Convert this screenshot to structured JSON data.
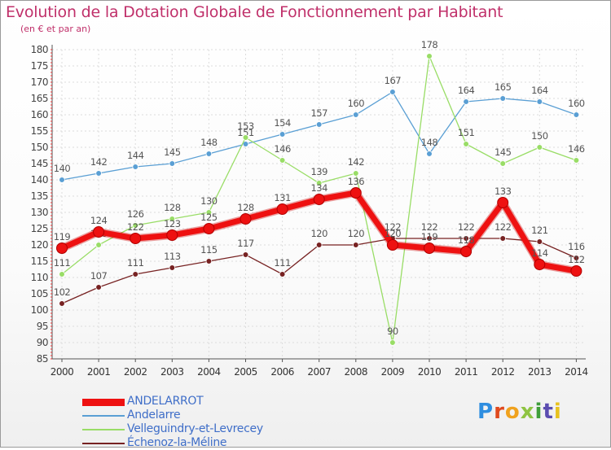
{
  "page": {
    "title": "Evolution de la Dotation Globale de Fonctionnement par Habitant",
    "subtitle": "(en € et par an)"
  },
  "logo": {
    "text": "Proxiti",
    "colors": [
      "#2f8ee0",
      "#e04a1e",
      "#f0a21e",
      "#8fc442",
      "#3f9e3a",
      "#5b4db0",
      "#e8c21e"
    ]
  },
  "chart_data": {
    "type": "line",
    "title": "Evolution de la Dotation Globale de Fonctionnement par Habitant",
    "subtitle": "(en € et par an)",
    "xlabel": "",
    "ylabel": "",
    "x": [
      "2000",
      "2001",
      "2002",
      "2003",
      "2004",
      "2005",
      "2006",
      "2007",
      "2008",
      "2009",
      "2010",
      "2011",
      "2012",
      "2013",
      "2014"
    ],
    "ylim": [
      85,
      180
    ],
    "yticks": [
      85,
      90,
      95,
      100,
      105,
      110,
      115,
      120,
      125,
      130,
      135,
      140,
      145,
      150,
      155,
      160,
      165,
      170,
      175,
      180
    ],
    "grid": true,
    "legend_position": "bottom-left",
    "series": [
      {
        "name": "ANDELARROT",
        "color": "#ee1111",
        "emphasis": true,
        "values": [
          119,
          124,
          122,
          123,
          125,
          128,
          131,
          134,
          136,
          120,
          119,
          118,
          133,
          114,
          112
        ]
      },
      {
        "name": "Andelarre",
        "color": "#5a9fd4",
        "values": [
          140,
          142,
          144,
          145,
          148,
          151,
          154,
          157,
          160,
          167,
          148,
          164,
          165,
          164,
          160
        ]
      },
      {
        "name": "Velleguindry-et-Levrecey",
        "color": "#99dd66",
        "values": [
          111,
          120,
          126,
          128,
          130,
          153,
          146,
          139,
          142,
          90,
          178,
          151,
          145,
          150,
          146
        ]
      },
      {
        "name": "Échenoz-la-Méline",
        "color": "#772222",
        "values": [
          102,
          107,
          111,
          113,
          115,
          117,
          111,
          120,
          120,
          122,
          122,
          122,
          122,
          121,
          116
        ]
      }
    ]
  }
}
